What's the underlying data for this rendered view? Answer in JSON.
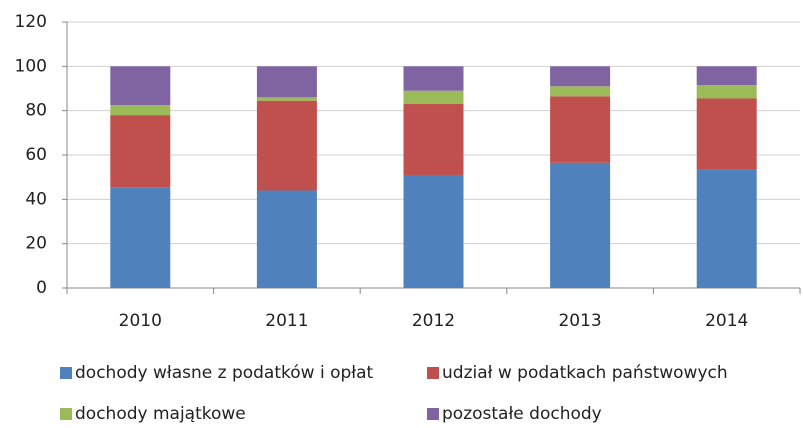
{
  "chart_data": {
    "type": "stacked_bar",
    "categories": [
      "2010",
      "2011",
      "2012",
      "2013",
      "2014"
    ],
    "series": [
      {
        "name": "dochody własne z podatków i opłat",
        "color": "#4f81bd",
        "values": [
          45.5,
          44,
          51,
          56.5,
          53.5
        ]
      },
      {
        "name": "udział w podatkach państwowych",
        "color": "#c0504d",
        "values": [
          32.5,
          40.5,
          32,
          30,
          32
        ]
      },
      {
        "name": "dochody majątkowe",
        "color": "#9bbb59",
        "values": [
          4.5,
          1.5,
          6,
          4.5,
          6
        ]
      },
      {
        "name": "pozostałe dochody",
        "color": "#8064a2",
        "values": [
          17.5,
          14,
          11,
          9,
          8.5
        ]
      }
    ],
    "ylim": [
      0,
      120
    ],
    "yticks": [
      0,
      20,
      40,
      60,
      80,
      100,
      120
    ],
    "grid": true
  }
}
